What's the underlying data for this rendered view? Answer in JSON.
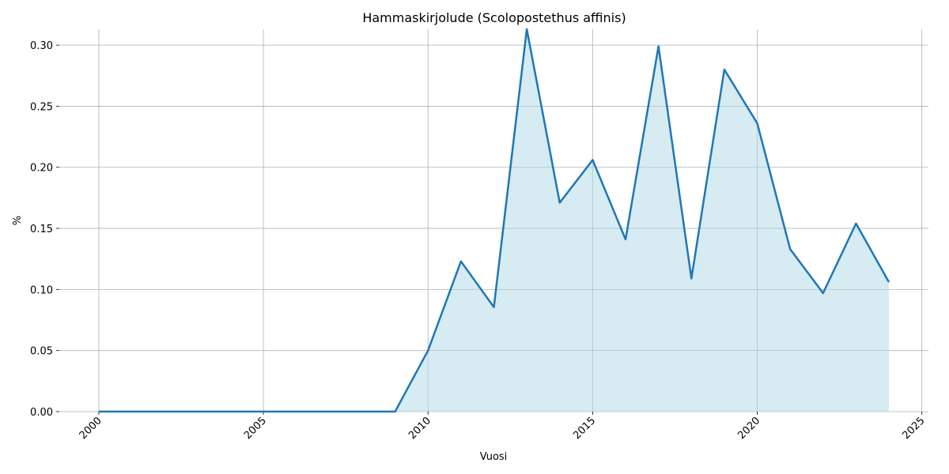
{
  "chart_data": {
    "type": "area",
    "title": "Hammaskirjolude (Scolopostethus affinis)",
    "x_label": "Vuosi",
    "y_label": "%",
    "x": [
      2000,
      2001,
      2002,
      2003,
      2004,
      2005,
      2006,
      2007,
      2008,
      2009,
      2010,
      2011,
      2012,
      2013,
      2014,
      2015,
      2016,
      2017,
      2018,
      2019,
      2020,
      2021,
      2022,
      2023,
      2024
    ],
    "values": [
      0,
      0,
      0,
      0,
      0,
      0,
      0,
      0,
      0,
      0,
      0.05,
      0.123,
      0.0855,
      0.313,
      0.171,
      0.206,
      0.141,
      0.299,
      0.109,
      0.28,
      0.236,
      0.133,
      0.097,
      0.154,
      0.106
    ],
    "color": "#1f77b4",
    "fill_color": "#add8e6",
    "xlim": [
      1998.8,
      2025.2
    ],
    "xticks": [
      2000,
      2005,
      2010,
      2015,
      2020,
      2025
    ],
    "ylim": [
      0,
      0.313
    ],
    "yticks": [
      {
        "value": 0,
        "label": "0.00"
      },
      {
        "value": 0.05,
        "label": "0.05"
      },
      {
        "value": 0.1,
        "label": "0.10"
      },
      {
        "value": 0.15,
        "label": "0.15"
      },
      {
        "value": 0.2,
        "label": "0.20"
      },
      {
        "value": 0.25,
        "label": "0.25"
      },
      {
        "value": 0.3,
        "label": "0.30"
      }
    ],
    "grid": true
  }
}
